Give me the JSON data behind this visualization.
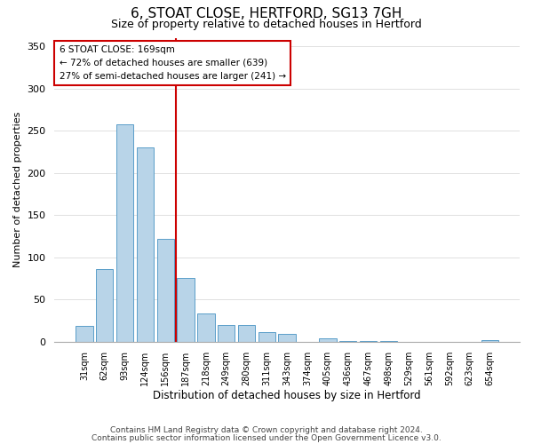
{
  "title": "6, STOAT CLOSE, HERTFORD, SG13 7GH",
  "subtitle": "Size of property relative to detached houses in Hertford",
  "xlabel": "Distribution of detached houses by size in Hertford",
  "ylabel": "Number of detached properties",
  "bar_labels": [
    "31sqm",
    "62sqm",
    "93sqm",
    "124sqm",
    "156sqm",
    "187sqm",
    "218sqm",
    "249sqm",
    "280sqm",
    "311sqm",
    "343sqm",
    "374sqm",
    "405sqm",
    "436sqm",
    "467sqm",
    "498sqm",
    "529sqm",
    "561sqm",
    "592sqm",
    "623sqm",
    "654sqm"
  ],
  "bar_values": [
    19,
    86,
    257,
    230,
    122,
    76,
    33,
    20,
    20,
    11,
    9,
    0,
    4,
    1,
    1,
    1,
    0,
    0,
    0,
    0,
    2
  ],
  "bar_color": "#b8d4e8",
  "bar_edge_color": "#5a9ec9",
  "vline_x": 4.5,
  "vline_color": "#cc0000",
  "annotation_title": "6 STOAT CLOSE: 169sqm",
  "annotation_line1": "← 72% of detached houses are smaller (639)",
  "annotation_line2": "27% of semi-detached houses are larger (241) →",
  "annotation_box_color": "#ffffff",
  "annotation_box_edge": "#cc0000",
  "ylim": [
    0,
    360
  ],
  "yticks": [
    0,
    50,
    100,
    150,
    200,
    250,
    300,
    350
  ],
  "footer1": "Contains HM Land Registry data © Crown copyright and database right 2024.",
  "footer2": "Contains public sector information licensed under the Open Government Licence v3.0.",
  "bg_color": "#ffffff",
  "grid_color": "#e0e0e0"
}
